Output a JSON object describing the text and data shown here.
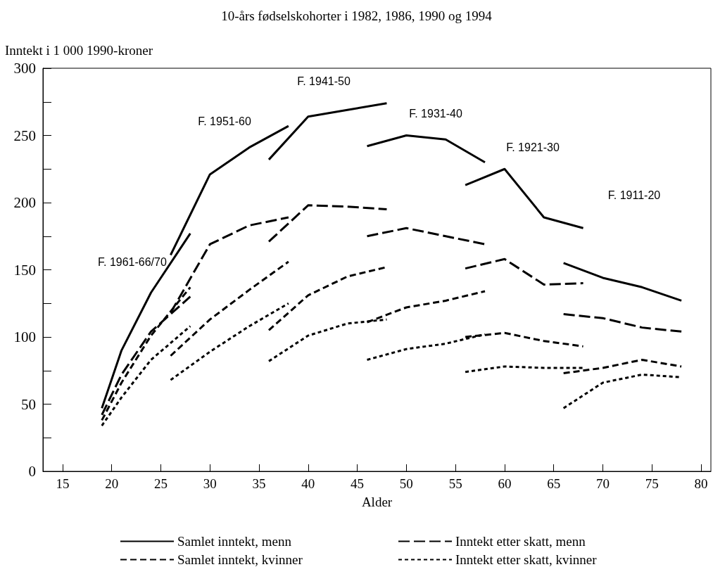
{
  "chart_data": {
    "type": "line",
    "title": "10-års fødselskohorter i 1982, 1986, 1990 og 1994",
    "ylabel": "Inntekt i 1 000 1990-kroner",
    "xlabel": "Alder",
    "xlim": [
      13,
      81
    ],
    "xticks": [
      15,
      20,
      25,
      30,
      35,
      40,
      45,
      50,
      55,
      60,
      65,
      70,
      75,
      80
    ],
    "ylim": [
      0,
      300
    ],
    "yticks": [
      0,
      {
        "value": 25,
        "label": null
      },
      50,
      {
        "value": 75,
        "label": null
      },
      100,
      {
        "value": 125,
        "label": null
      },
      150,
      {
        "value": 175,
        "label": null
      },
      200,
      {
        "value": 225,
        "label": null
      },
      250,
      {
        "value": 275,
        "label": null
      },
      300
    ],
    "grid": false,
    "legend": "bottom",
    "marker": "none",
    "series": [
      {
        "name": "Samlet inntekt, menn",
        "color": "#000000",
        "line_style": "solid",
        "x": [
          19,
          21,
          24,
          28
        ],
        "values": [
          47,
          90,
          133,
          177
        ]
      },
      {
        "name": "Inntekt etter skatt, menn",
        "color": "#000000",
        "line_style": "longdash",
        "x": [
          19,
          21,
          24,
          28
        ],
        "values": [
          42,
          72,
          104,
          130
        ]
      },
      {
        "name": "Samlet inntekt, kvinner",
        "color": "#000000",
        "line_style": "dashed",
        "x": [
          19,
          21,
          24,
          28
        ],
        "values": [
          38,
          66,
          101,
          137
        ]
      },
      {
        "name": "Inntekt etter skatt, kvinner",
        "color": "#000000",
        "line_style": "dotted",
        "x": [
          19,
          21,
          24,
          28
        ],
        "values": [
          34,
          55,
          83,
          108
        ]
      },
      {
        "color": "#000000",
        "line_style": "solid",
        "x": [
          26,
          30,
          34,
          38
        ],
        "values": [
          161,
          221,
          241,
          257
        ]
      },
      {
        "color": "#000000",
        "line_style": "longdash",
        "x": [
          26,
          30,
          34,
          38
        ],
        "values": [
          118,
          169,
          183,
          189
        ]
      },
      {
        "color": "#000000",
        "line_style": "dashed",
        "x": [
          26,
          30,
          34,
          38
        ],
        "values": [
          86,
          113,
          135,
          156
        ]
      },
      {
        "color": "#000000",
        "line_style": "dotted",
        "x": [
          26,
          30,
          34,
          38
        ],
        "values": [
          68,
          89,
          108,
          125
        ]
      },
      {
        "color": "#000000",
        "line_style": "solid",
        "x": [
          36,
          40,
          44,
          48
        ],
        "values": [
          232,
          264,
          269,
          274
        ]
      },
      {
        "color": "#000000",
        "line_style": "longdash",
        "x": [
          36,
          40,
          44,
          48
        ],
        "values": [
          171,
          198,
          197,
          195
        ]
      },
      {
        "color": "#000000",
        "line_style": "dashed",
        "x": [
          36,
          40,
          44,
          48
        ],
        "values": [
          105,
          131,
          145,
          152
        ]
      },
      {
        "color": "#000000",
        "line_style": "dotted",
        "x": [
          36,
          40,
          44,
          48
        ],
        "values": [
          82,
          101,
          110,
          113
        ]
      },
      {
        "color": "#000000",
        "line_style": "solid",
        "x": [
          46,
          50,
          54,
          58
        ],
        "values": [
          242,
          250,
          247,
          230
        ]
      },
      {
        "color": "#000000",
        "line_style": "longdash",
        "x": [
          46,
          50,
          54,
          58
        ],
        "values": [
          175,
          181,
          175,
          169
        ]
      },
      {
        "color": "#000000",
        "line_style": "dashed",
        "x": [
          46,
          50,
          54,
          58
        ],
        "values": [
          111,
          122,
          127,
          134
        ]
      },
      {
        "color": "#000000",
        "line_style": "dotted",
        "x": [
          46,
          50,
          54,
          58
        ],
        "values": [
          83,
          91,
          95,
          102
        ]
      },
      {
        "color": "#000000",
        "line_style": "solid",
        "x": [
          56,
          60,
          64,
          68
        ],
        "values": [
          213,
          225,
          189,
          181
        ]
      },
      {
        "color": "#000000",
        "line_style": "longdash",
        "x": [
          56,
          60,
          64,
          68
        ],
        "values": [
          151,
          158,
          139,
          140
        ]
      },
      {
        "color": "#000000",
        "line_style": "dashed",
        "x": [
          56,
          60,
          64,
          68
        ],
        "values": [
          100,
          103,
          97,
          93
        ]
      },
      {
        "color": "#000000",
        "line_style": "dotted",
        "x": [
          56,
          60,
          64,
          68
        ],
        "values": [
          74,
          78,
          77,
          77
        ]
      },
      {
        "color": "#000000",
        "line_style": "solid",
        "x": [
          66,
          70,
          74,
          78
        ],
        "values": [
          155,
          144,
          137,
          127
        ]
      },
      {
        "color": "#000000",
        "line_style": "longdash",
        "x": [
          66,
          70,
          74,
          78
        ],
        "values": [
          117,
          114,
          107,
          104
        ]
      },
      {
        "color": "#000000",
        "line_style": "dashed",
        "x": [
          66,
          70,
          74,
          78
        ],
        "values": [
          73,
          77,
          83,
          78
        ]
      },
      {
        "color": "#000000",
        "line_style": "dotted",
        "x": [
          66,
          70,
          74,
          78
        ],
        "values": [
          47,
          66,
          72,
          70
        ]
      }
    ],
    "annotations": [
      "F. 1961-66/70",
      "F. 1951-60",
      "F. 1941-50",
      "F. 1931-40",
      "F. 1921-30",
      "F. 1911-20"
    ]
  }
}
